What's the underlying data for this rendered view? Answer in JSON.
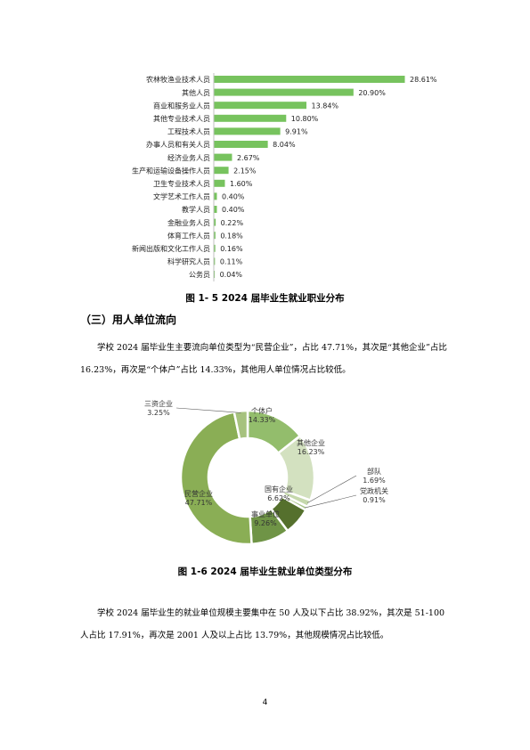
{
  "figure_1_5": {
    "caption": "图 1- 5    2024 届毕业生就业职业分布",
    "chart_data": {
      "type": "bar",
      "orientation": "horizontal",
      "categories": [
        "农林牧渔业技术人员",
        "其他人员",
        "商业和服务业人员",
        "其他专业技术人员",
        "工程技术人员",
        "办事人员和有关人员",
        "经济业务人员",
        "生产和运输设备操作人员",
        "卫生专业技术人员",
        "文学艺术工作人员",
        "教学人员",
        "金融业务人员",
        "体育工作人员",
        "新闻出版和文化工作人员",
        "科学研究人员",
        "公务员"
      ],
      "values": [
        28.61,
        20.9,
        13.84,
        10.8,
        9.91,
        8.04,
        2.67,
        2.15,
        1.6,
        0.4,
        0.4,
        0.22,
        0.18,
        0.16,
        0.11,
        0.04
      ],
      "labels": [
        "28.61%",
        "20.90%",
        "13.84%",
        "10.80%",
        "9.91%",
        "8.04%",
        "2.67%",
        "2.15%",
        "1.60%",
        "0.40%",
        "0.40%",
        "0.22%",
        "0.18%",
        "0.16%",
        "0.11%",
        "0.04%"
      ],
      "color": "#77c35e"
    }
  },
  "section": {
    "heading": "（三）用人单位流向"
  },
  "paragraph1": "学校 2024 届毕业生主要流向单位类型为“民营企业”，占比 47.71%，其次是“其他企业”占比 16.23%，再次是“个体户”占比 14.33%，其他用人单位情况占比较低。",
  "figure_1_6": {
    "caption": "图 1-6    2024 届毕业生就业单位类型分布",
    "chart_data": {
      "type": "pie",
      "donut": true,
      "slices": [
        {
          "name": "个体户",
          "value": 14.33,
          "label": "14.33%",
          "color": "#93bd6c"
        },
        {
          "name": "其他企业",
          "value": 16.23,
          "label": "16.23%",
          "color": "#d3e1c0"
        },
        {
          "name": "部队",
          "value": 1.69,
          "label": "1.69%",
          "color": "#c5d8ac"
        },
        {
          "name": "党政机关",
          "value": 0.91,
          "label": "0.91%",
          "color": "#a9c48a"
        },
        {
          "name": "国有企业",
          "value": 6.62,
          "label": "6.62%",
          "color": "#55702d"
        },
        {
          "name": "事业单位",
          "value": 9.26,
          "label": "9.26%",
          "color": "#6f9446"
        },
        {
          "name": "民营企业",
          "value": 47.71,
          "label": "47.71%",
          "color": "#8aae55"
        },
        {
          "name": "三资企业",
          "value": 3.25,
          "label": "3.25%",
          "color": "#a6c27e"
        }
      ]
    }
  },
  "paragraph2": "学校 2024 届毕业生的就业单位规模主要集中在 50 人及以下占比 38.92%，其次是 51-100 人占比 17.91%，再次是 2001 人及以上占比 13.79%，其他规模情况占比较低。",
  "page_number": "4"
}
